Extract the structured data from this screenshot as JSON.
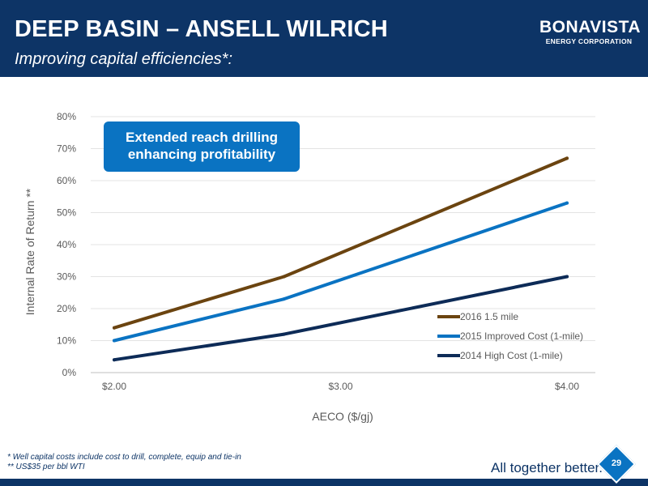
{
  "header": {
    "title": "DEEP BASIN – ANSELL WILRICH",
    "subtitle": "Improving capital efficiencies*:"
  },
  "logo": {
    "word": "BONAVISTA",
    "sub": "ENERGY CORPORATION"
  },
  "callout": {
    "line1": "Extended reach drilling",
    "line2": "enhancing profitability"
  },
  "footnotes": [
    "* Well capital costs include cost to drill, complete, equip and tie-in",
    "** US$35 per bbl WTI"
  ],
  "footer": {
    "tagline": "All together better.",
    "tagline_mark": "®",
    "page_number": "29"
  },
  "colors": {
    "header_bg": "#0d3466",
    "callout_bg": "#0a73c2",
    "series_2016": "#6b4410",
    "series_2015": "#0a73c2",
    "series_2014": "#0d2b57"
  },
  "chart_data": {
    "type": "line",
    "title": "",
    "xlabel": "AECO ($/gj)",
    "ylabel": "Internal Rate of Return **",
    "xlim": [
      2.0,
      4.0
    ],
    "ylim": [
      0,
      80
    ],
    "x_ticks": [
      2.0,
      3.0,
      4.0
    ],
    "x_tick_labels": [
      "$2.00",
      "$3.00",
      "$4.00"
    ],
    "y_ticks": [
      0,
      10,
      20,
      30,
      40,
      50,
      60,
      70,
      80
    ],
    "y_tick_labels": [
      "0%",
      "10%",
      "20%",
      "30%",
      "40%",
      "50%",
      "60%",
      "70%",
      "80%"
    ],
    "grid": true,
    "legend_position": "bottom-right",
    "series": [
      {
        "name": "2016 1.5 mile",
        "color": "#6b4410",
        "x": [
          2.0,
          2.75,
          4.0
        ],
        "y": [
          14,
          30,
          67
        ]
      },
      {
        "name": "2015 Improved Cost (1-mile)",
        "color": "#0a73c2",
        "x": [
          2.0,
          2.75,
          4.0
        ],
        "y": [
          10,
          23,
          53
        ]
      },
      {
        "name": "2014 High Cost (1-mile)",
        "color": "#0d2b57",
        "x": [
          2.0,
          2.75,
          4.0
        ],
        "y": [
          4,
          12,
          30
        ]
      }
    ]
  }
}
